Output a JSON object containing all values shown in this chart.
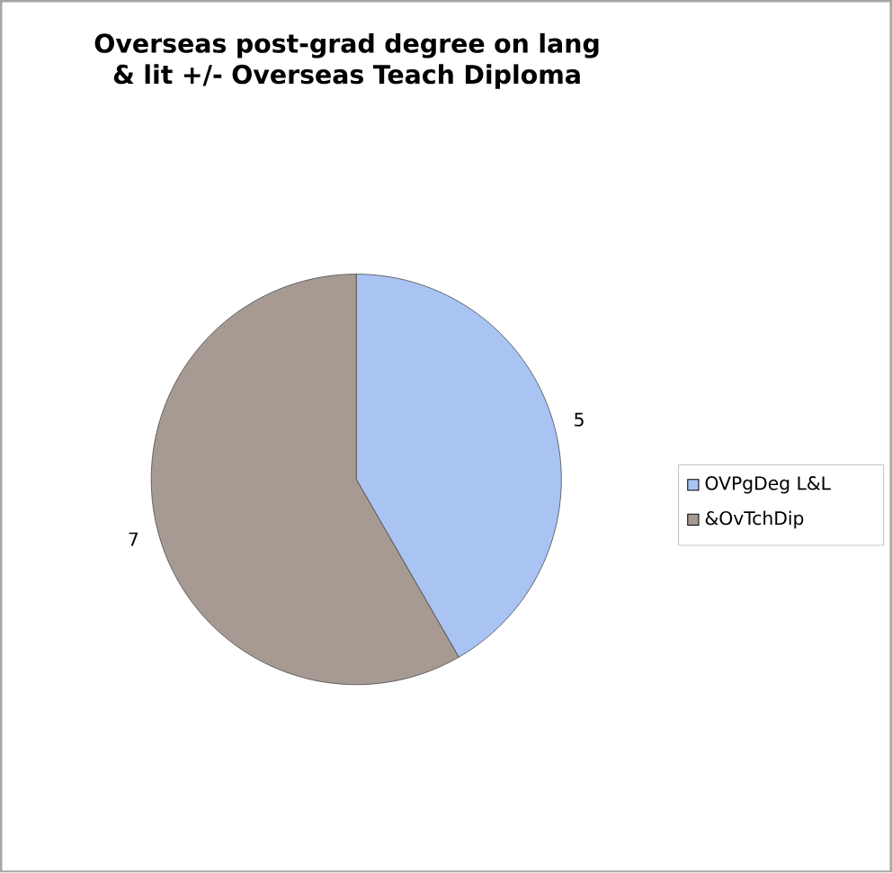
{
  "chart_data": {
    "type": "pie",
    "title": "Overseas post-grad degree on lang & lit +/- Overseas Teach Diploma",
    "categories": [
      "OVPgDeg L&L",
      "&OvTchDip"
    ],
    "values": [
      5,
      7
    ],
    "colors": [
      "#a9c3f2",
      "#a69a93"
    ],
    "data_labels": true,
    "legend": "right"
  }
}
